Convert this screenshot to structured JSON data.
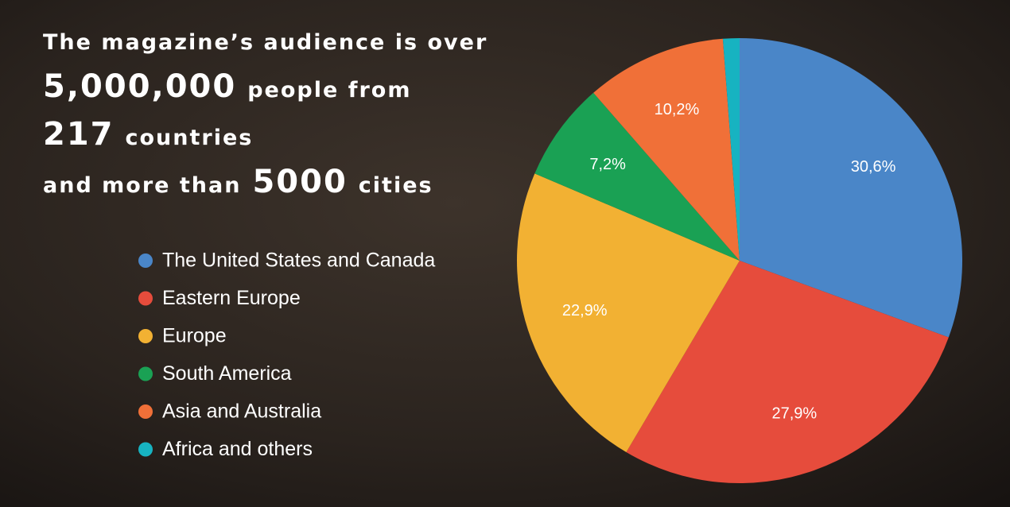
{
  "chart_data": {
    "type": "pie",
    "headline": [
      "The magazine’s audience is over",
      "5,000,000",
      "people from",
      "217",
      "countries",
      "and more than",
      "5000",
      "cities"
    ],
    "categories": [
      "The United States and Canada",
      "Eastern Europe",
      "Europe",
      "South America",
      "Asia and Australia",
      "Africa and others"
    ],
    "values": [
      30.6,
      27.9,
      22.9,
      7.2,
      10.2,
      1.2
    ],
    "value_labels": [
      "30,6%",
      "27,9%",
      "22,9%",
      "7,2%",
      "10,2%",
      null
    ],
    "colors": [
      "#4a86c8",
      "#e64c3c",
      "#f2b133",
      "#1aa154",
      "#f07038",
      "#17b3c1"
    ]
  }
}
